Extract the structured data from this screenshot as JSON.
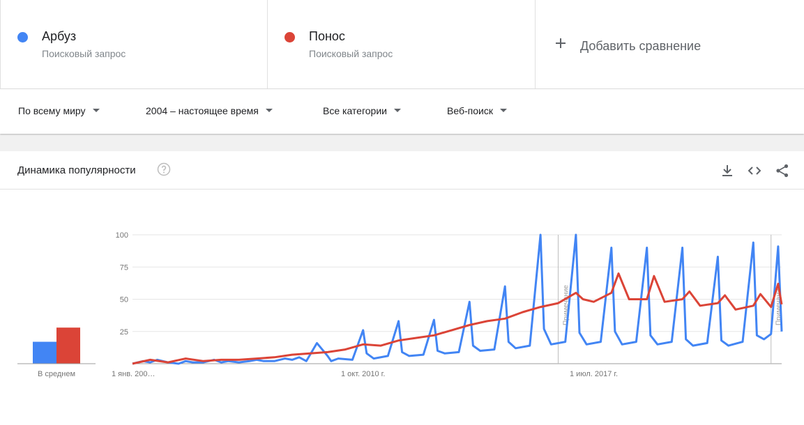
{
  "terms": [
    {
      "name": "Арбуз",
      "sub": "Поисковый запрос",
      "color": "#4285f4"
    },
    {
      "name": "Понос",
      "sub": "Поисковый запрос",
      "color": "#db4437"
    }
  ],
  "add_compare": {
    "label": "Добавить сравнение",
    "icon": "plus-icon"
  },
  "filters": [
    {
      "label": "По всему миру"
    },
    {
      "label": "2004 – настоящее время"
    },
    {
      "label": "Все категории"
    },
    {
      "label": "Веб-поиск"
    }
  ],
  "card": {
    "title": "Динамика популярности",
    "icons": [
      "help-icon",
      "download-icon",
      "embed-icon",
      "share-icon"
    ]
  },
  "chart_data": {
    "type": "line",
    "title": "Динамика популярности",
    "ylim": [
      0,
      100
    ],
    "y_ticks": [
      "100",
      "75",
      "50",
      "25"
    ],
    "x_ticks": [
      "1 янв. 200…",
      "1 окт. 2010 г.",
      "1 июл. 2017 г."
    ],
    "x_range": [
      2004.0,
      2022.3
    ],
    "grid": true,
    "annotations": [
      {
        "label": "Примечание",
        "x": 2016.0
      },
      {
        "label": "Примечание",
        "x": 2022.0
      }
    ],
    "average_label": "В среднем",
    "averages": [
      {
        "name": "Арбуз",
        "value": 17
      },
      {
        "name": "Понос",
        "value": 28
      }
    ],
    "series": [
      {
        "name": "Арбуз",
        "color": "#4285f4",
        "x": [
          2004.0,
          2004.3,
          2004.5,
          2004.7,
          2005.0,
          2005.3,
          2005.5,
          2005.7,
          2006.0,
          2006.3,
          2006.5,
          2006.7,
          2007.0,
          2007.3,
          2007.5,
          2007.7,
          2008.0,
          2008.3,
          2008.5,
          2008.7,
          2008.9,
          2009.2,
          2009.5,
          2009.6,
          2009.8,
          2010.2,
          2010.5,
          2010.6,
          2010.8,
          2011.2,
          2011.5,
          2011.6,
          2011.8,
          2012.2,
          2012.5,
          2012.6,
          2012.8,
          2013.2,
          2013.5,
          2013.6,
          2013.8,
          2014.2,
          2014.5,
          2014.6,
          2014.8,
          2015.2,
          2015.5,
          2015.6,
          2015.8,
          2016.2,
          2016.5,
          2016.6,
          2016.8,
          2017.2,
          2017.5,
          2017.6,
          2017.8,
          2018.2,
          2018.5,
          2018.6,
          2018.8,
          2019.2,
          2019.5,
          2019.6,
          2019.8,
          2020.2,
          2020.5,
          2020.6,
          2020.8,
          2021.2,
          2021.5,
          2021.6,
          2021.8,
          2022.0,
          2022.2,
          2022.3
        ],
        "y": [
          0,
          2,
          1,
          3,
          1,
          0,
          2,
          1,
          1,
          3,
          1,
          2,
          1,
          2,
          3,
          2,
          2,
          4,
          3,
          5,
          2,
          16,
          6,
          2,
          4,
          3,
          26,
          8,
          4,
          6,
          33,
          9,
          6,
          7,
          34,
          10,
          8,
          9,
          48,
          14,
          10,
          11,
          60,
          17,
          12,
          14,
          100,
          27,
          15,
          17,
          100,
          24,
          15,
          17,
          90,
          25,
          15,
          17,
          90,
          22,
          15,
          17,
          90,
          19,
          14,
          16,
          83,
          18,
          14,
          17,
          94,
          22,
          19,
          23,
          91,
          25
        ]
      },
      {
        "name": "Понос",
        "color": "#db4437",
        "x": [
          2004.0,
          2004.5,
          2005.0,
          2005.5,
          2006.0,
          2006.5,
          2007.0,
          2007.5,
          2008.0,
          2008.5,
          2009.0,
          2009.5,
          2010.0,
          2010.5,
          2011.0,
          2011.5,
          2012.0,
          2012.5,
          2013.0,
          2013.5,
          2014.0,
          2014.5,
          2015.0,
          2015.5,
          2016.0,
          2016.5,
          2016.7,
          2017.0,
          2017.5,
          2017.7,
          2018.0,
          2018.5,
          2018.7,
          2019.0,
          2019.5,
          2019.7,
          2020.0,
          2020.5,
          2020.7,
          2021.0,
          2021.5,
          2021.7,
          2022.0,
          2022.2,
          2022.3
        ],
        "y": [
          0,
          3,
          1,
          4,
          2,
          3,
          3,
          4,
          5,
          7,
          8,
          9,
          11,
          15,
          14,
          18,
          20,
          22,
          26,
          30,
          33,
          35,
          40,
          44,
          47,
          55,
          50,
          48,
          55,
          70,
          50,
          50,
          68,
          48,
          50,
          56,
          45,
          47,
          53,
          42,
          45,
          54,
          44,
          62,
          46
        ]
      }
    ]
  }
}
